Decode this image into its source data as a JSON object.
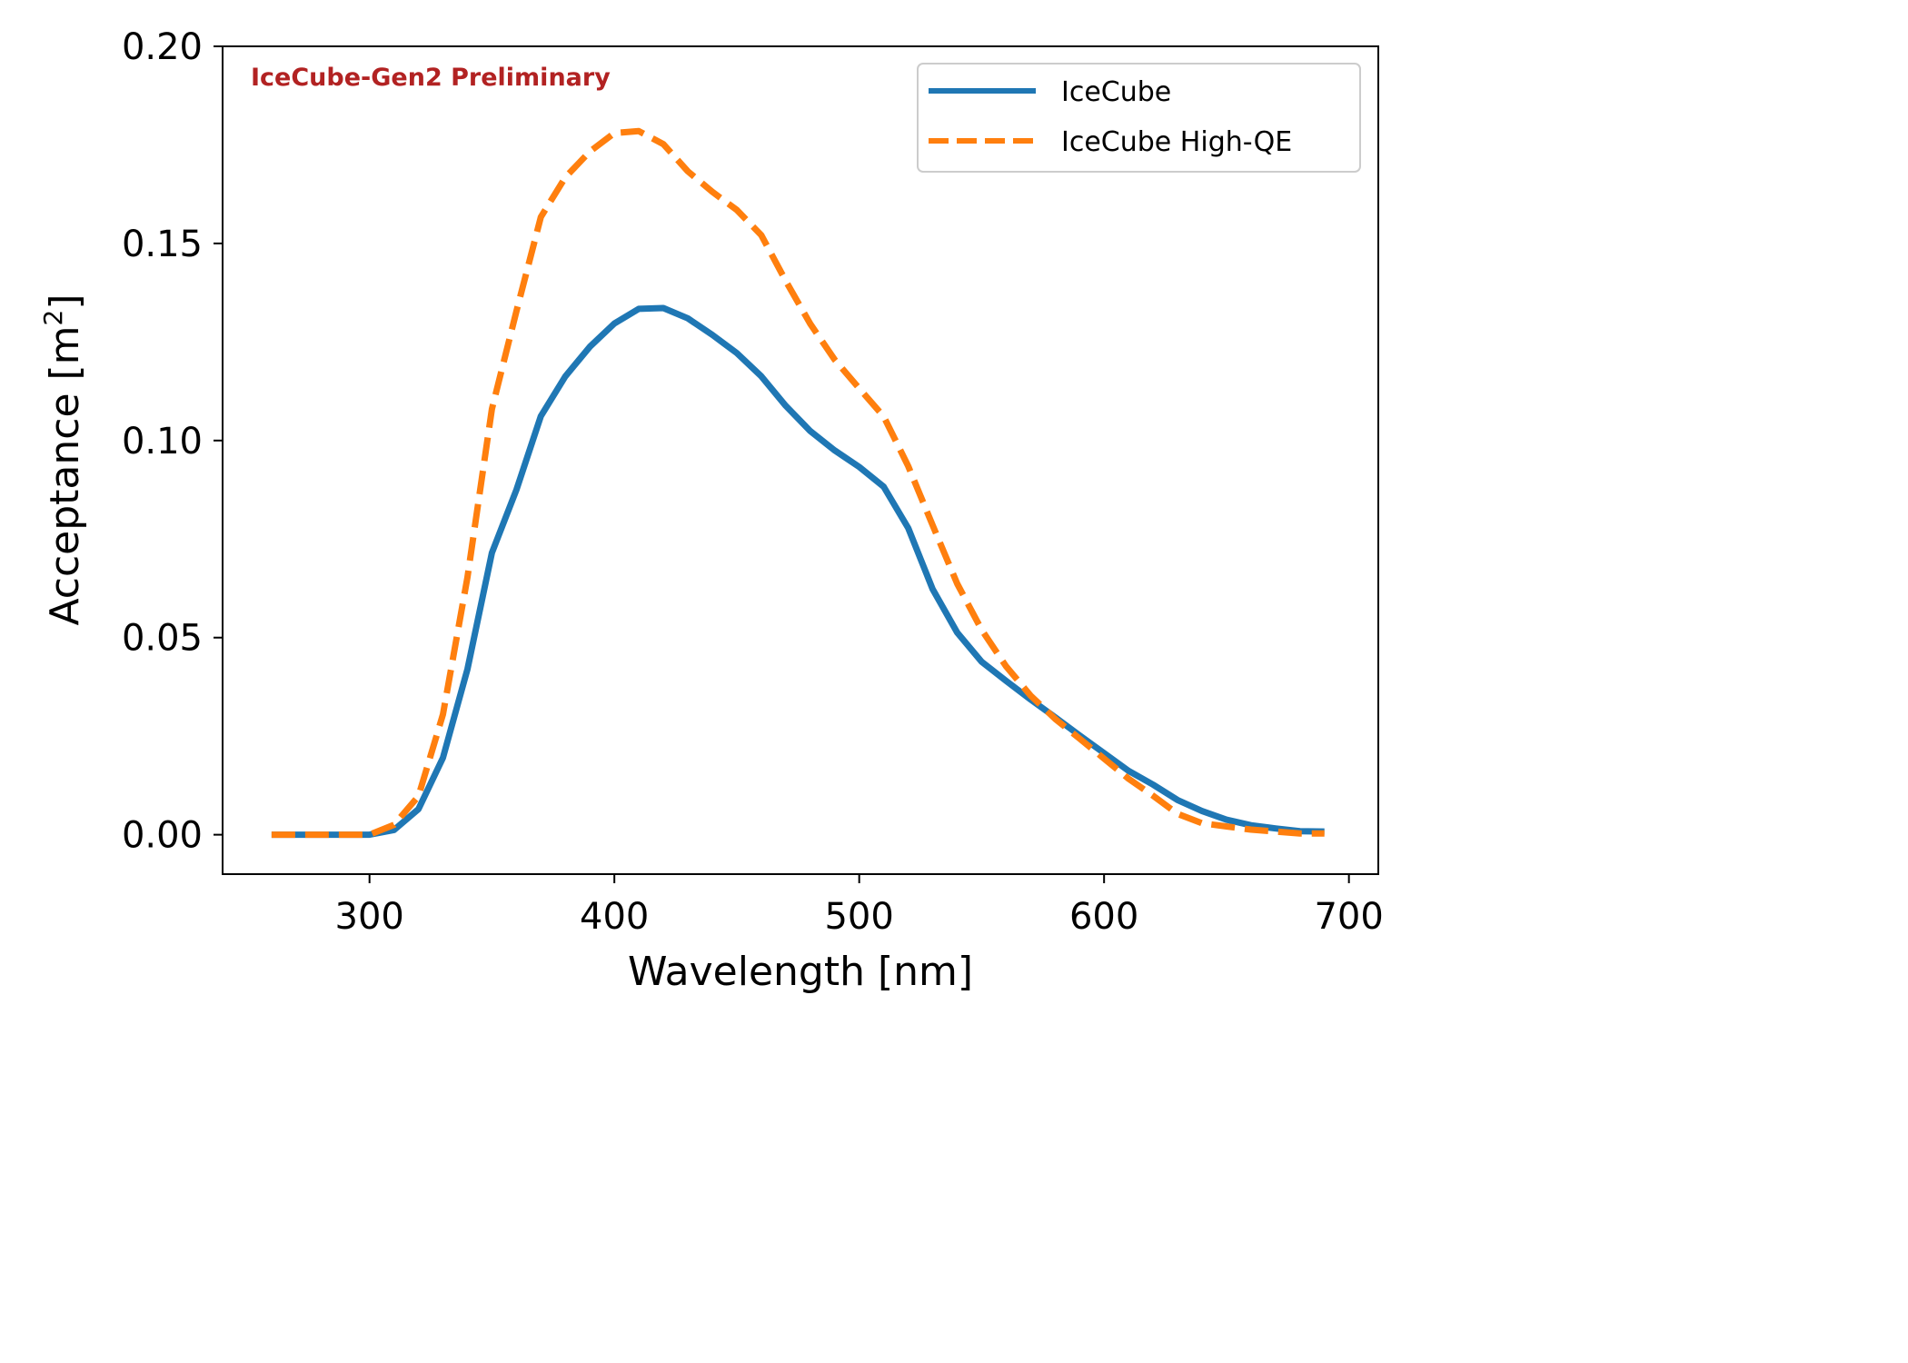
{
  "chart_data": {
    "type": "line",
    "title": "",
    "xlabel": "Wavelength [nm]",
    "ylabel_prefix": "Acceptance [m",
    "ylabel_superscript": "2",
    "ylabel_suffix": "]",
    "xlim": [
      240,
      712
    ],
    "ylim": [
      -0.01,
      0.2
    ],
    "xticks": [
      300,
      400,
      500,
      600,
      700
    ],
    "xtick_labels": [
      "300",
      "400",
      "500",
      "600",
      "700"
    ],
    "yticks": [
      0.0,
      0.05,
      0.1,
      0.15,
      0.2
    ],
    "ytick_labels": [
      "0.00",
      "0.05",
      "0.10",
      "0.15",
      "0.20"
    ],
    "grid": false,
    "legend_position": "top-right",
    "annotation": {
      "text": "IceCube-Gen2 Preliminary",
      "color": "#b22222",
      "position": "top-left"
    },
    "x": [
      260,
      270,
      280,
      290,
      300,
      310,
      320,
      330,
      340,
      350,
      360,
      370,
      380,
      390,
      400,
      410,
      420,
      430,
      440,
      450,
      460,
      470,
      480,
      490,
      500,
      510,
      520,
      530,
      540,
      550,
      560,
      570,
      580,
      590,
      600,
      610,
      620,
      630,
      640,
      650,
      660,
      670,
      680,
      690
    ],
    "series": [
      {
        "name": "IceCube",
        "color": "#1f77b4",
        "style": "solid",
        "values": [
          0.0,
          0.0,
          0.0,
          0.0,
          0.0,
          0.0012,
          0.0065,
          0.0195,
          0.042,
          0.0715,
          0.0875,
          0.1062,
          0.1163,
          0.1238,
          0.1297,
          0.1334,
          0.1336,
          0.131,
          0.1268,
          0.1222,
          0.1163,
          0.1088,
          0.1024,
          0.0975,
          0.0933,
          0.0883,
          0.0778,
          0.0623,
          0.0513,
          0.0439,
          0.039,
          0.0343,
          0.0298,
          0.0252,
          0.0207,
          0.0162,
          0.0127,
          0.0088,
          0.006,
          0.0038,
          0.0024,
          0.0016,
          0.0009,
          0.0008
        ]
      },
      {
        "name": "IceCube High-QE",
        "color": "#ff7f0e",
        "style": "dashed",
        "values": [
          0.0,
          0.0,
          0.0,
          0.0,
          0.0,
          0.0025,
          0.0098,
          0.0305,
          0.0653,
          0.108,
          0.1328,
          0.1567,
          0.1668,
          0.1733,
          0.178,
          0.1785,
          0.1752,
          0.1683,
          0.1631,
          0.1585,
          0.1521,
          0.1405,
          0.1296,
          0.1205,
          0.1132,
          0.1061,
          0.0935,
          0.0785,
          0.0637,
          0.052,
          0.0427,
          0.0353,
          0.0294,
          0.0244,
          0.0193,
          0.0142,
          0.0099,
          0.0053,
          0.0029,
          0.0021,
          0.0013,
          0.0008,
          0.0003,
          0.0003
        ]
      }
    ]
  }
}
